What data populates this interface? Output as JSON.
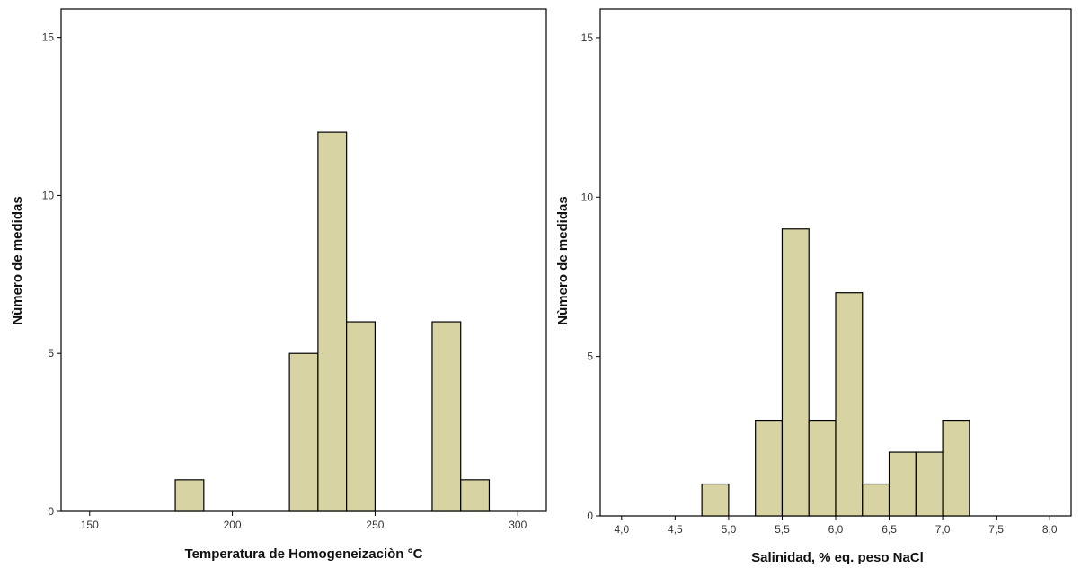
{
  "bar_color": "#d8d3a3",
  "chart_data": [
    {
      "type": "bar",
      "title": "",
      "xlabel": "Temperatura de Homogeneizaciòn °C",
      "ylabel": "Nùmero de medidas",
      "xlim": [
        140,
        310
      ],
      "ylim": [
        0,
        15.9
      ],
      "xticks": [
        150,
        200,
        250,
        300
      ],
      "xtick_labels": [
        "150",
        "200",
        "250",
        "300"
      ],
      "yticks": [
        0,
        5,
        10,
        15
      ],
      "ytick_labels": [
        "0",
        "5",
        "10",
        "15"
      ],
      "grid": false,
      "bins": [
        {
          "from": 180,
          "to": 190,
          "count": 1
        },
        {
          "from": 220,
          "to": 230,
          "count": 5
        },
        {
          "from": 230,
          "to": 240,
          "count": 12
        },
        {
          "from": 240,
          "to": 250,
          "count": 6
        },
        {
          "from": 270,
          "to": 280,
          "count": 6
        },
        {
          "from": 280,
          "to": 290,
          "count": 1
        }
      ]
    },
    {
      "type": "bar",
      "title": "",
      "xlabel": "Salinidad, % eq. peso NaCl",
      "ylabel": "Nùmero de medidas",
      "xlim": [
        3.8,
        8.2
      ],
      "ylim": [
        0,
        15.9
      ],
      "xticks": [
        4.0,
        4.5,
        5.0,
        5.5,
        6.0,
        6.5,
        7.0,
        7.5,
        8.0
      ],
      "xtick_labels": [
        "4,0",
        "4,5",
        "5,0",
        "5,5",
        "6,0",
        "6,5",
        "7,0",
        "7,5",
        "8,0"
      ],
      "yticks": [
        0,
        5,
        10,
        15
      ],
      "ytick_labels": [
        "0",
        "5",
        "10",
        "15"
      ],
      "grid": false,
      "bins": [
        {
          "from": 4.75,
          "to": 5.0,
          "count": 1
        },
        {
          "from": 5.25,
          "to": 5.5,
          "count": 3
        },
        {
          "from": 5.5,
          "to": 5.75,
          "count": 9
        },
        {
          "from": 5.75,
          "to": 6.0,
          "count": 3
        },
        {
          "from": 6.0,
          "to": 6.25,
          "count": 7
        },
        {
          "from": 6.25,
          "to": 6.5,
          "count": 1
        },
        {
          "from": 6.5,
          "to": 6.75,
          "count": 2
        },
        {
          "from": 6.75,
          "to": 7.0,
          "count": 2
        },
        {
          "from": 7.0,
          "to": 7.25,
          "count": 3
        }
      ]
    }
  ]
}
